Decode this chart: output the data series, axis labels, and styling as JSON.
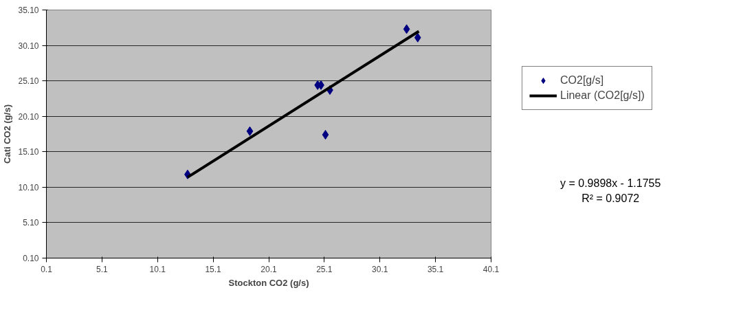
{
  "chart_data": {
    "type": "scatter",
    "xlabel": "Stockton CO2 (g/s)",
    "ylabel": "Cati CO2 (g/s)",
    "xlim": [
      0.1,
      40.1
    ],
    "xticks": [
      {
        "value": 0.1,
        "label": "0.1"
      },
      {
        "value": 5.1,
        "label": "5.1"
      },
      {
        "value": 10.1,
        "label": "10.1"
      },
      {
        "value": 15.1,
        "label": "15.1"
      },
      {
        "value": 20.1,
        "label": "20.1"
      },
      {
        "value": 25.1,
        "label": "25.1"
      },
      {
        "value": 30.1,
        "label": "30.1"
      },
      {
        "value": 35.1,
        "label": "35.1"
      },
      {
        "value": 40.1,
        "label": "40.1"
      }
    ],
    "ylim": [
      0.1,
      35.1
    ],
    "yticks": [
      {
        "value": 0.1,
        "label": "0.10"
      },
      {
        "value": 5.1,
        "label": "5.10"
      },
      {
        "value": 10.1,
        "label": "10.10"
      },
      {
        "value": 15.1,
        "label": "15.10"
      },
      {
        "value": 20.1,
        "label": "20.10"
      },
      {
        "value": 25.1,
        "label": "25.10"
      },
      {
        "value": 30.1,
        "label": "30.10"
      },
      {
        "value": 35.1,
        "label": "35.10"
      }
    ],
    "grid": "y",
    "legend": "right",
    "series": [
      {
        "name": "CO2[g/s]",
        "color": "#000080",
        "marker": "diamond",
        "x": [
          12.8,
          18.4,
          24.5,
          24.8,
          25.6,
          25.2,
          32.5,
          33.5
        ],
        "values": [
          11.9,
          18.0,
          24.5,
          24.5,
          23.8,
          17.5,
          32.4,
          31.2
        ]
      },
      {
        "name": "Linear (CO2[g/s])",
        "color": "#000000",
        "type": "line",
        "x": [
          12.8,
          33.6
        ],
        "values": [
          11.5,
          32.1
        ]
      }
    ],
    "annotations": [
      "y = 0.9898x - 1.1755",
      "R² = 0.9072"
    ]
  }
}
